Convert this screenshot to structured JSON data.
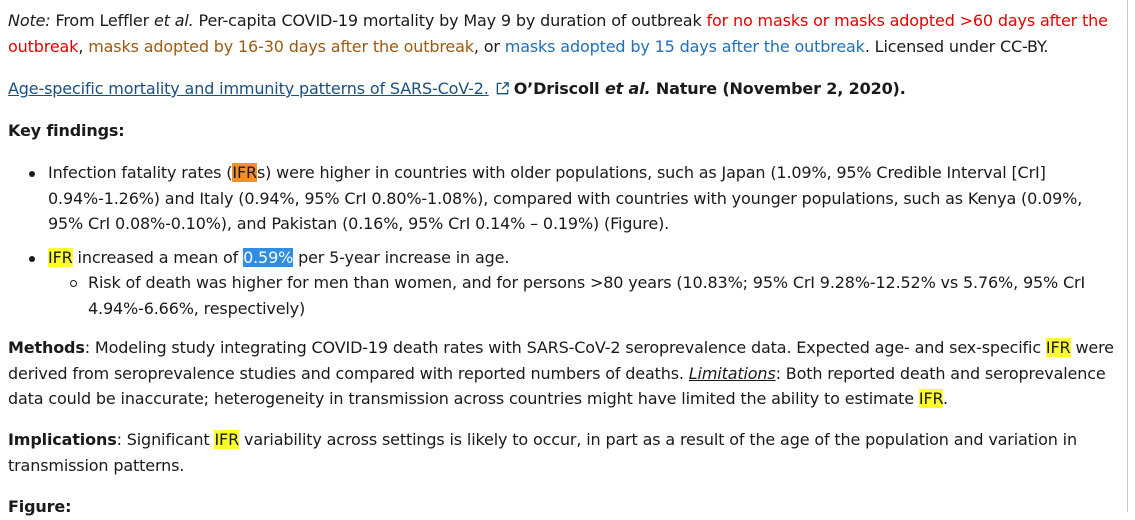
{
  "note": {
    "label": "Note:",
    "t1": " From Leffler ",
    "etal": "et al.",
    "t2": " Per-capita COVID-19 mortality by May 9 by duration of outbreak ",
    "red": "for no masks or masks adopted >60 days after the outbreak",
    "t3": ", ",
    "brown": "masks adopted by 16-30 days after the outbreak",
    "t4": ", or ",
    "blue": "masks adopted by 15 days after the outbreak",
    "t5": ". Licensed under CC-BY."
  },
  "reference": {
    "link_text": "Age-specific mortality and immunity patterns of SARS-CoV-2.",
    "authors": "O’Driscoll ",
    "etal": "et al.",
    "journal": " Nature (November 2, 2020)."
  },
  "key_findings": {
    "heading": "Key findings:",
    "item1": {
      "t1": "Infection fatality rates (",
      "hl": "IFR",
      "t2": "s) were higher in countries with older populations, such as Japan (1.09%, 95% Credible Interval [CrI] 0.94%-1.26%) and Italy (0.94%, 95% CrI 0.80%-1.08%), compared with countries with younger populations, such as Kenya (0.09%, 95% CrI 0.08%-0.10%), and Pakistan (0.16%, 95% CrI 0.14% – 0.19%) (Figure)."
    },
    "item2": {
      "hl": "IFR",
      "t1": " increased a mean of ",
      "sel": "0.59%",
      "t2": " per 5-year increase in age."
    },
    "subitem": "Risk of death was higher for men than women, and for persons >80 years (10.83%; 95% CrI 9.28%-12.52% vs 5.76%, 95% CrI 4.94%-6.66%, respectively)"
  },
  "methods": {
    "label": "Methods",
    "t1": ": Modeling study integrating COVID-19 death rates with SARS-CoV-2 seroprevalence data. Expected age- and sex-specific ",
    "hl1": "IFR",
    "t2": " were derived from seroprevalence studies and compared with reported numbers of deaths. ",
    "limitations": "Limitations",
    "t3": ": Both reported death and seroprevalence data could be inaccurate; heterogeneity in transmission across countries might have limited the ability to estimate ",
    "hl2": "IFR",
    "t4": "."
  },
  "implications": {
    "label": "Implications",
    "t1": ": Significant ",
    "hl": "IFR",
    "t2": " variability across settings is likely to occur, in part as a result of the age of the population and variation in transmission patterns."
  },
  "figure_heading": "Figure:",
  "colors": {
    "red": "#e60000",
    "brown": "#9a5a10",
    "blue": "#1f6fb8",
    "highlight": "#ffff2e",
    "current_match": "#f2902a",
    "selection": "#2f8de4",
    "link": "#1a4f82"
  },
  "icons": [
    "external-link-icon"
  ]
}
